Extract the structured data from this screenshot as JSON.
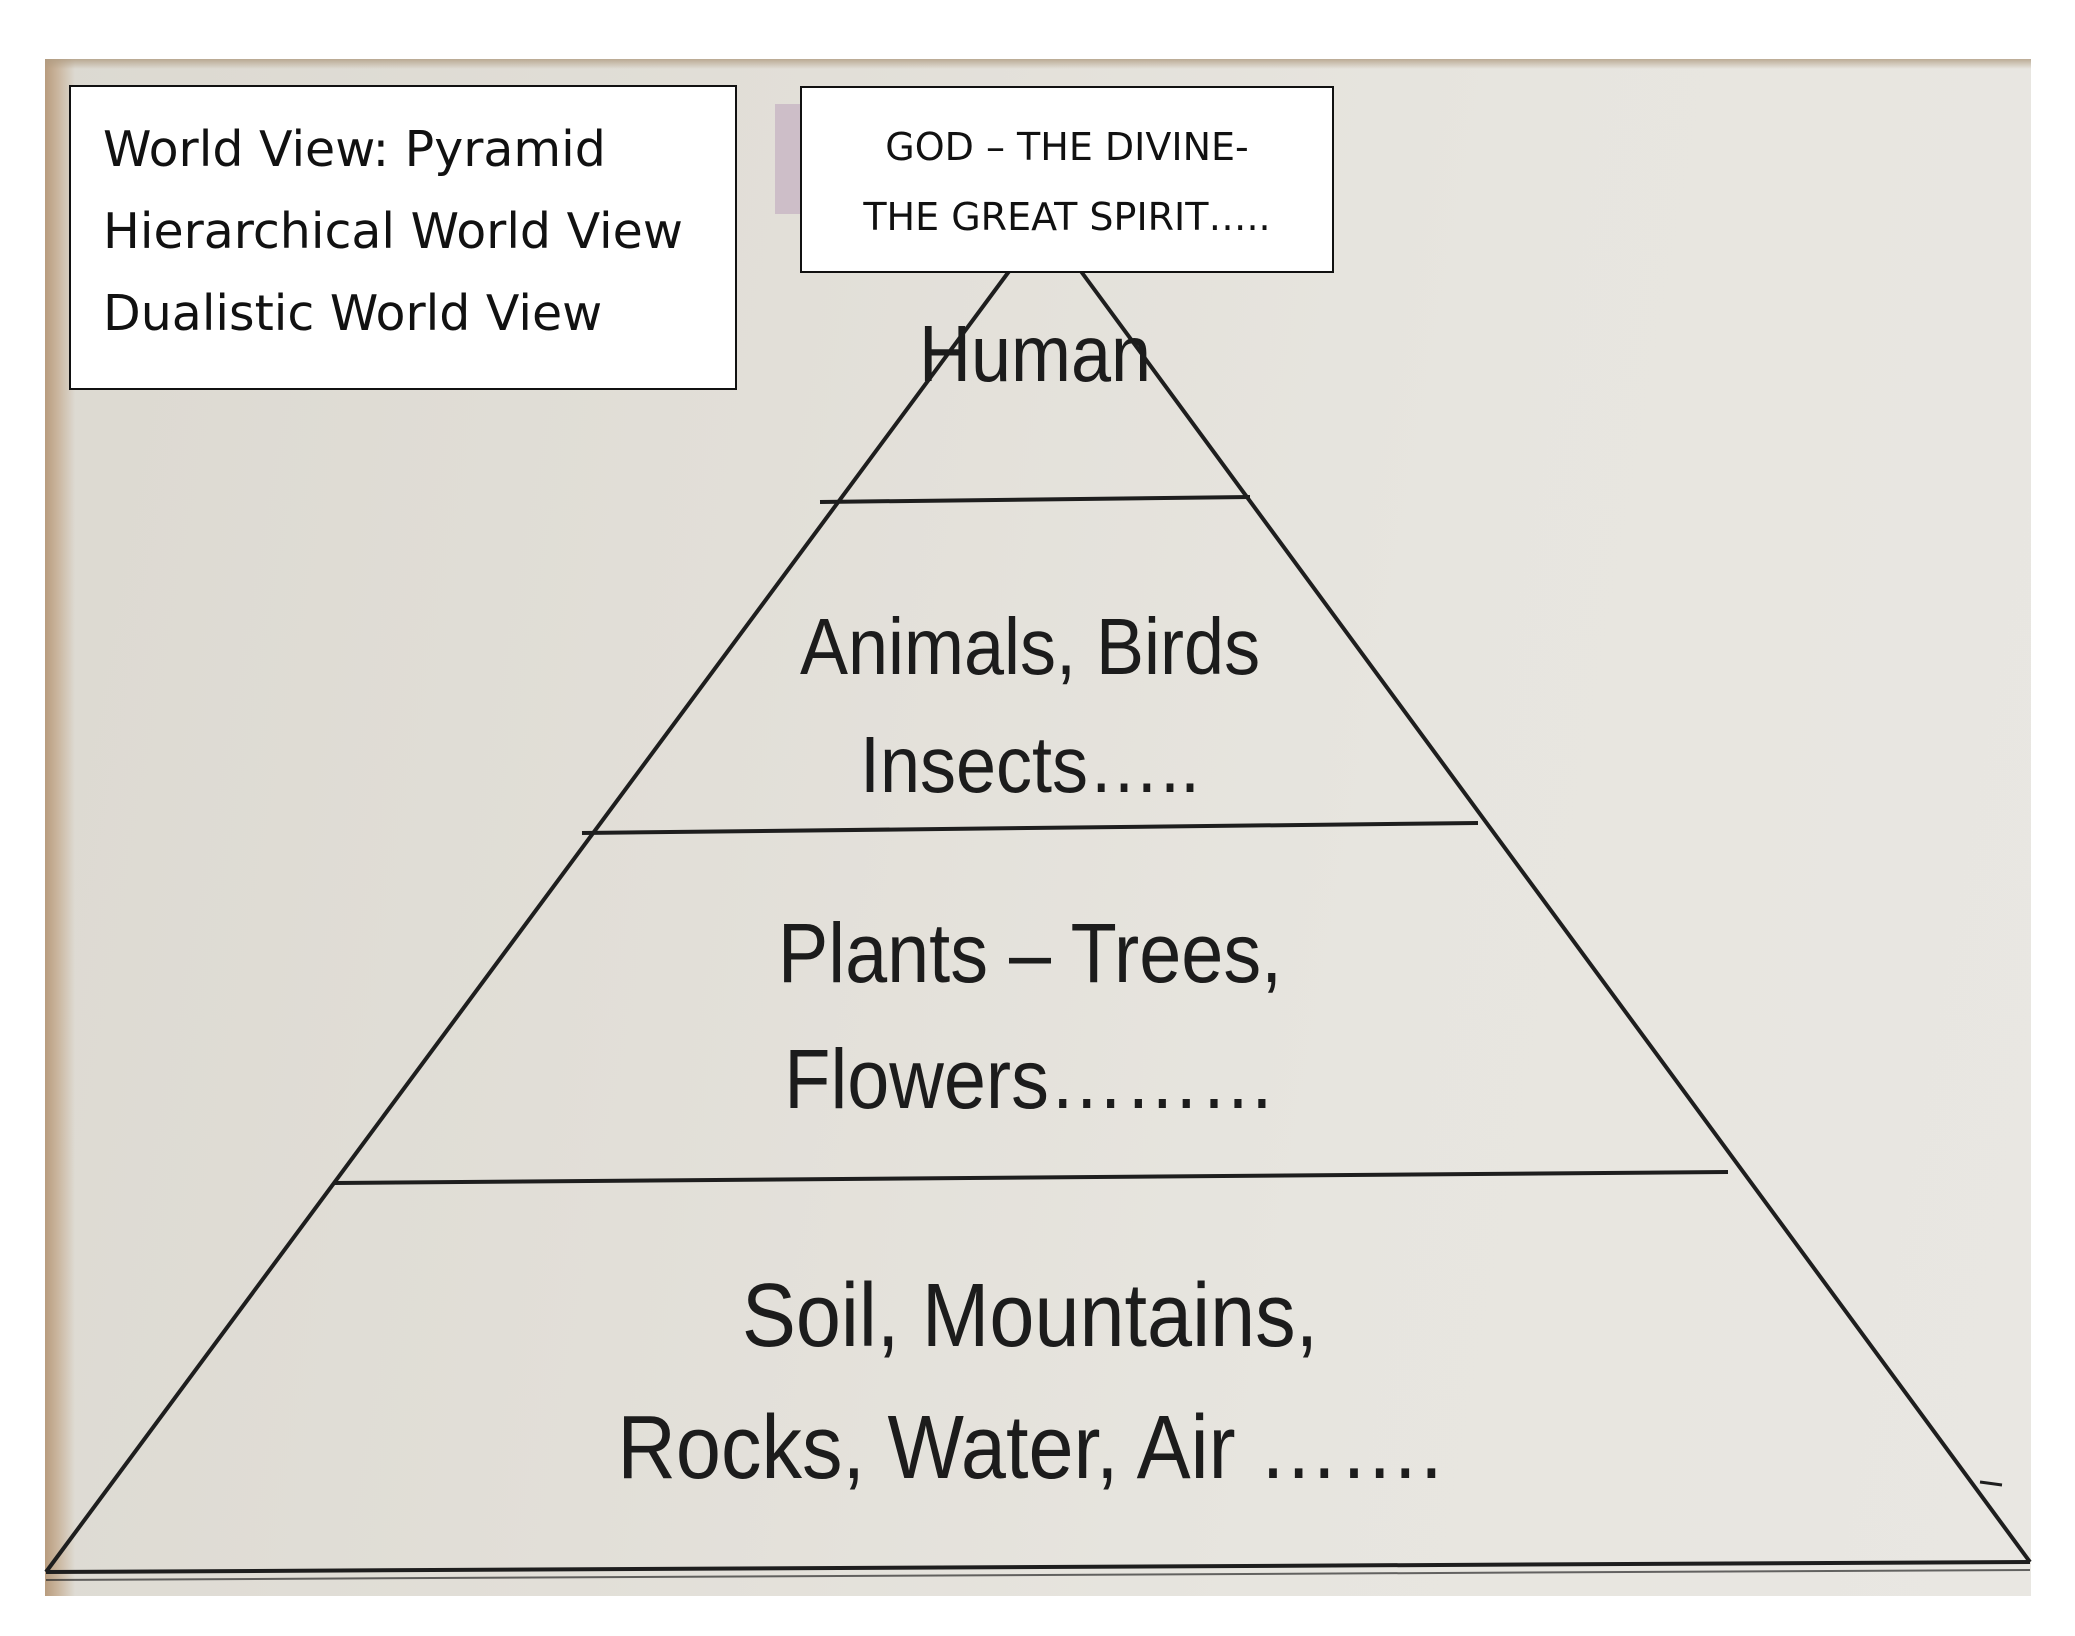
{
  "info_box": {
    "lines": [
      "World View: Pyramid",
      "Hierarchical World View",
      "Dualistic World View"
    ]
  },
  "top_box": {
    "lines": [
      "GOD – THE DIVINE-",
      "THE GREAT SPIRIT….."
    ]
  },
  "pyramid": {
    "tiers": [
      {
        "lines": [
          "Human"
        ]
      },
      {
        "lines": [
          "Animals, Birds",
          "Insects….."
        ]
      },
      {
        "lines": [
          "Plants – Trees,",
          "Flowers………"
        ]
      },
      {
        "lines": [
          "Soil, Mountains,",
          "Rocks, Water, Air ……."
        ]
      }
    ]
  },
  "colors": {
    "paper": "#e3e0d9",
    "ink": "#1c1c1c",
    "box_fill": "#ffffff"
  }
}
